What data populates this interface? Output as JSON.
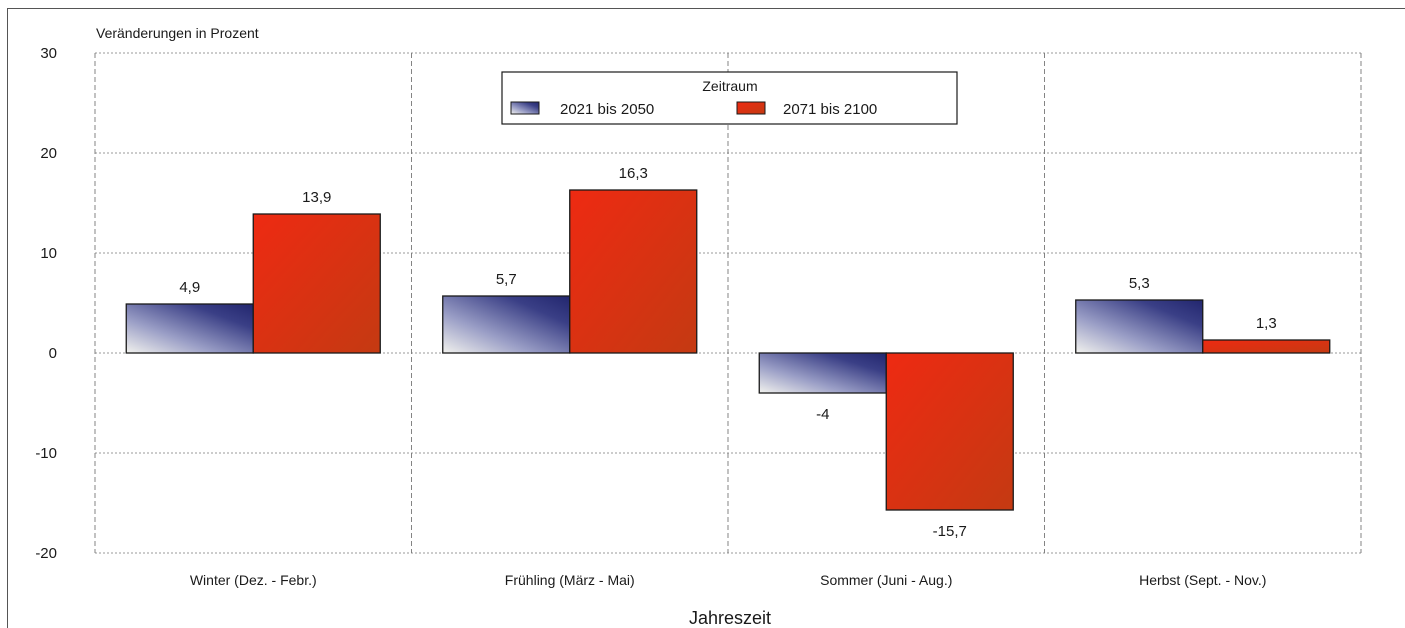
{
  "chart_data": {
    "type": "bar",
    "ylabel": "Veränderungen in Prozent",
    "xlabel": "Jahreszeit",
    "ylim": [
      -20,
      30
    ],
    "yticks": [
      30,
      20,
      10,
      0,
      -10,
      -20
    ],
    "grid": true,
    "legend": {
      "title": "Zeitraum",
      "placement": "top-center"
    },
    "categories": [
      "Winter (Dez. - Febr.)",
      "Frühling (März - Mai)",
      "Sommer (Juni - Aug.)",
      "Herbst (Sept. - Nov.)"
    ],
    "series": [
      {
        "name": "2021 bis 2050",
        "values": [
          4.9,
          5.7,
          -4,
          5.3
        ],
        "labels": [
          "4,9",
          "5,7",
          "-4",
          "5,3"
        ],
        "color": "#3a3f86"
      },
      {
        "name": "2071 bis 2100",
        "values": [
          13.9,
          16.3,
          -15.7,
          1.3
        ],
        "labels": [
          "13,9",
          "16,3",
          "-15,7",
          "1,3"
        ],
        "color": "#d63212"
      }
    ]
  }
}
